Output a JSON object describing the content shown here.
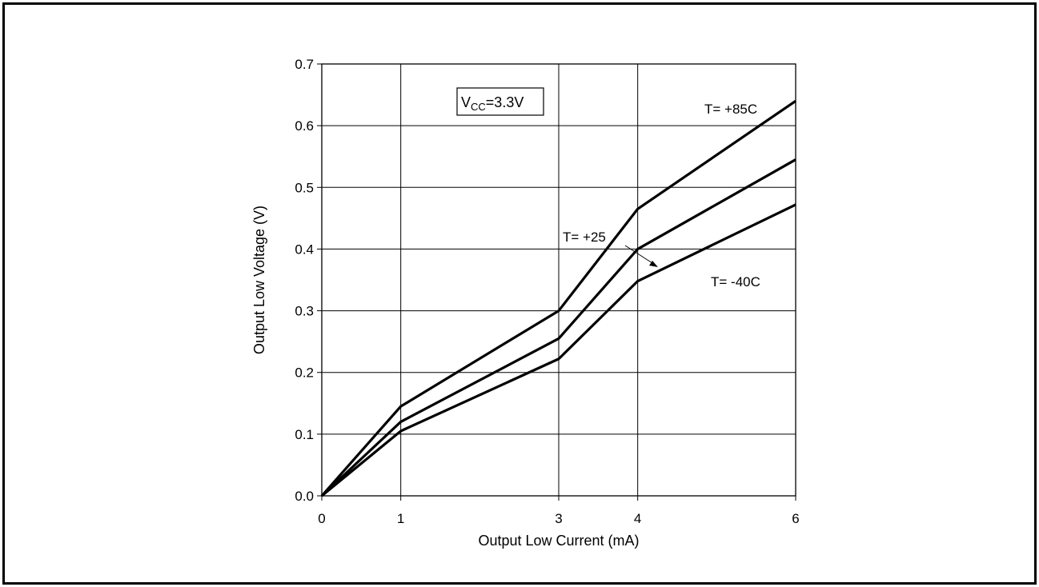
{
  "chart_data": {
    "type": "line",
    "title": "",
    "xlabel": "Output Low Current (mA)",
    "ylabel": "Output Low Voltage (V)",
    "x_ticks": [
      0,
      1,
      3,
      4,
      6
    ],
    "x_tick_labels": [
      "0",
      "1",
      "3",
      "4",
      "6"
    ],
    "y_ticks": [
      0.0,
      0.1,
      0.2,
      0.3,
      0.4,
      0.5,
      0.6,
      0.7
    ],
    "y_tick_labels": [
      "0.0",
      "0.1",
      "0.2",
      "0.3",
      "0.4",
      "0.5",
      "0.6",
      "0.7"
    ],
    "grid": true,
    "condition_box": {
      "main": "V",
      "sub": "CC",
      "rest": "=3.3V"
    },
    "series": [
      {
        "name": "T= +85C",
        "x": [
          0,
          1,
          3,
          4,
          6
        ],
        "values": [
          0.0,
          0.145,
          0.3,
          0.465,
          0.64
        ]
      },
      {
        "name": "T= +25",
        "x": [
          0,
          1,
          3,
          4,
          6
        ],
        "values": [
          0.0,
          0.12,
          0.255,
          0.4,
          0.545
        ]
      },
      {
        "name": "T= -40C",
        "x": [
          0,
          1,
          3,
          4,
          6
        ],
        "values": [
          0.0,
          0.105,
          0.222,
          0.348,
          0.472
        ]
      }
    ],
    "colors": {
      "line": "#000000",
      "grid": "#000000"
    }
  }
}
